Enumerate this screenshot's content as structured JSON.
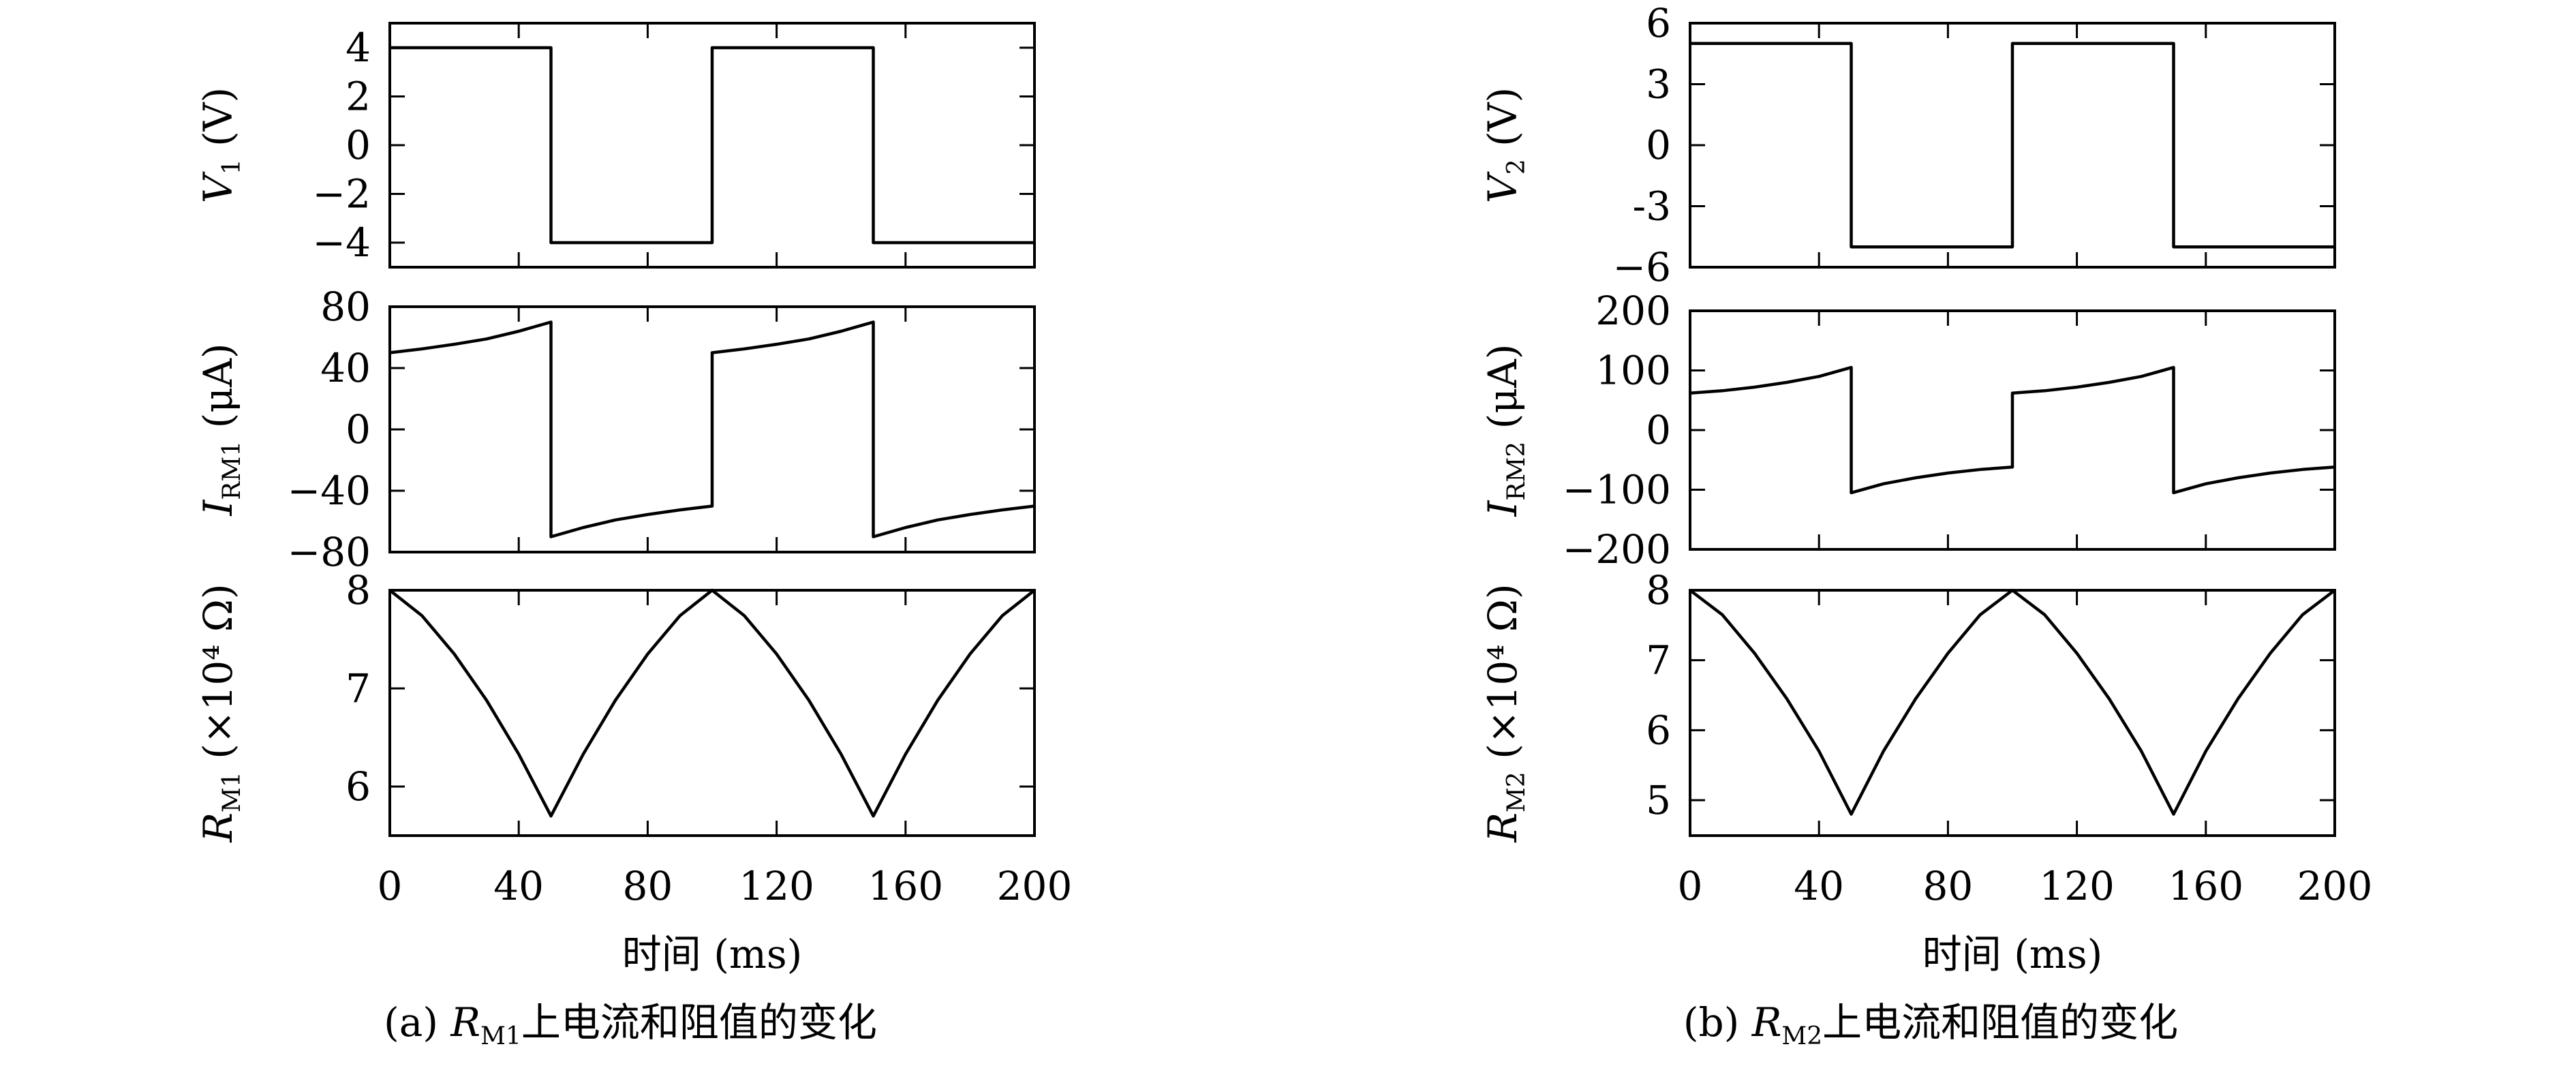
{
  "chart_data": [
    {
      "id": "a",
      "type": "line",
      "caption": {
        "prefix": "(a) ",
        "var": "R",
        "sub": "M1",
        "suffix": "上电流和阻值的变化"
      },
      "xlabel": "时间 (ms)",
      "xlim": [
        0,
        200
      ],
      "xticks": [
        0,
        40,
        80,
        120,
        160,
        200
      ],
      "panels": [
        {
          "key": "v1",
          "ylabel": {
            "var": "V",
            "sub": "1",
            "unit": " (V)"
          },
          "ylim": [
            -5,
            5
          ],
          "yticks": [
            4,
            2,
            0,
            -2,
            -4
          ],
          "ytick_labels": [
            "4",
            "2",
            "0",
            "−2",
            "−4"
          ],
          "series": [
            {
              "x": [
                0,
                50,
                50,
                100,
                100,
                150,
                150,
                200
              ],
              "y": [
                4,
                4,
                -4,
                -4,
                4,
                4,
                -4,
                -4
              ]
            }
          ]
        },
        {
          "key": "i1",
          "ylabel": {
            "var": "I",
            "sub": "RM1",
            "unit": " (μA)"
          },
          "ylim": [
            -80,
            80
          ],
          "yticks": [
            80,
            40,
            0,
            -40,
            -80
          ],
          "ytick_labels": [
            "80",
            "40",
            "0",
            "−40",
            "−80"
          ],
          "series": [
            {
              "x": [
                0,
                10,
                20,
                30,
                40,
                50,
                50,
                60,
                70,
                80,
                90,
                100,
                100,
                110,
                120,
                130,
                140,
                150,
                150,
                160,
                170,
                180,
                190,
                200
              ],
              "y": [
                50,
                52.5,
                55.5,
                59,
                64,
                70,
                -70,
                -64,
                -59,
                -55.5,
                -52.5,
                -50,
                50,
                52.5,
                55.5,
                59,
                64,
                70,
                -70,
                -64,
                -59,
                -55.5,
                -52.5,
                -50
              ]
            }
          ]
        },
        {
          "key": "r1",
          "ylabel": {
            "var": "R",
            "sub": "M1",
            "unit": " (×10⁴ Ω)"
          },
          "ylim": [
            5.5,
            8
          ],
          "yticks": [
            8,
            7,
            6
          ],
          "ytick_labels": [
            "8",
            "7",
            "6"
          ],
          "series": [
            {
              "x": [
                0,
                10,
                20,
                30,
                40,
                50,
                60,
                70,
                80,
                90,
                100,
                110,
                120,
                130,
                140,
                150,
                160,
                170,
                180,
                190,
                200
              ],
              "y": [
                8,
                7.74,
                7.35,
                6.88,
                6.33,
                5.7,
                6.33,
                6.88,
                7.35,
                7.74,
                8,
                7.74,
                7.35,
                6.88,
                6.33,
                5.7,
                6.33,
                6.88,
                7.35,
                7.74,
                8
              ]
            }
          ]
        }
      ]
    },
    {
      "id": "b",
      "type": "line",
      "caption": {
        "prefix": "(b) ",
        "var": "R",
        "sub": "M2",
        "suffix": "上电流和阻值的变化"
      },
      "xlabel": "时间 (ms)",
      "xlim": [
        0,
        200
      ],
      "xticks": [
        0,
        40,
        80,
        120,
        160,
        200
      ],
      "panels": [
        {
          "key": "v2",
          "ylabel": {
            "var": "V",
            "sub": "2",
            "unit": " (V)"
          },
          "ylim": [
            -6,
            6
          ],
          "yticks": [
            6,
            3,
            0,
            -3,
            -6
          ],
          "ytick_labels": [
            "6",
            "3",
            "0",
            "-3",
            "−6"
          ],
          "series": [
            {
              "x": [
                0,
                50,
                50,
                100,
                100,
                150,
                150,
                200
              ],
              "y": [
                5,
                5,
                -5,
                -5,
                5,
                5,
                -5,
                -5
              ]
            }
          ]
        },
        {
          "key": "i2",
          "ylabel": {
            "var": "I",
            "sub": "RM2",
            "unit": " (μA)"
          },
          "ylim": [
            -200,
            200
          ],
          "yticks": [
            200,
            100,
            0,
            -100,
            -200
          ],
          "ytick_labels": [
            "200",
            "100",
            "0",
            "−100",
            "−200"
          ],
          "series": [
            {
              "x": [
                0,
                10,
                20,
                30,
                40,
                50,
                50,
                60,
                70,
                80,
                90,
                100,
                100,
                110,
                120,
                130,
                140,
                150,
                150,
                160,
                170,
                180,
                190,
                200
              ],
              "y": [
                62,
                66,
                72,
                80,
                90,
                105,
                -105,
                -90,
                -80,
                -72,
                -66,
                -62,
                62,
                66,
                72,
                80,
                90,
                105,
                -105,
                -90,
                -80,
                -72,
                -66,
                -62
              ]
            }
          ]
        },
        {
          "key": "r2",
          "ylabel": {
            "var": "R",
            "sub": "M2",
            "unit": " (×10⁴ Ω)"
          },
          "ylim": [
            4.5,
            8
          ],
          "yticks": [
            8,
            7,
            6,
            5
          ],
          "ytick_labels": [
            "8",
            "7",
            "6",
            "5"
          ],
          "series": [
            {
              "x": [
                0,
                10,
                20,
                30,
                40,
                50,
                60,
                70,
                80,
                90,
                100,
                110,
                120,
                130,
                140,
                150,
                160,
                170,
                180,
                190,
                200
              ],
              "y": [
                8,
                7.65,
                7.1,
                6.45,
                5.7,
                4.8,
                5.7,
                6.45,
                7.1,
                7.65,
                8,
                7.65,
                7.1,
                6.45,
                5.7,
                4.8,
                5.7,
                6.45,
                7.1,
                7.65,
                8
              ]
            }
          ]
        }
      ]
    }
  ]
}
